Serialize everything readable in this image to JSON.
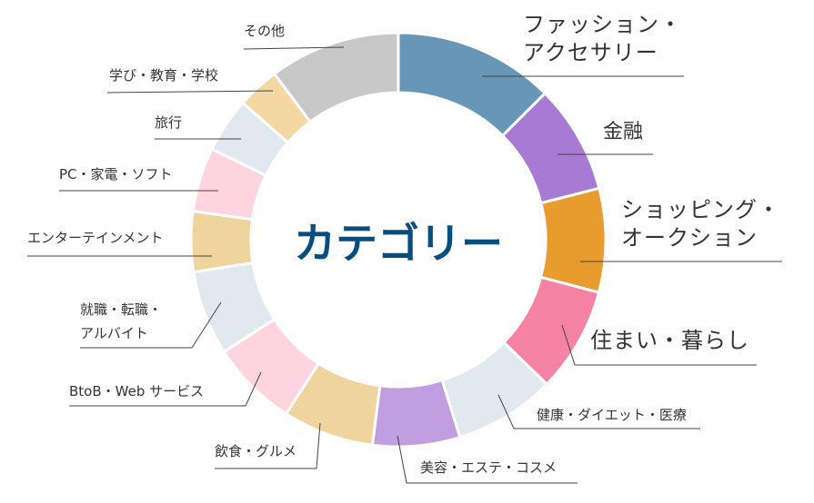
{
  "chart_data": {
    "type": "pie",
    "donut": true,
    "title": "カテゴリー",
    "unit_note": "values are estimated shares (%) read from slice angles; no values printed",
    "categories": [
      "ファッション・アクセサリー",
      "金融",
      "ショッピング・オークション",
      "住まい・暮らし",
      "健康・ダイエット・医療",
      "美容・エステ・コスメ",
      "飲食・グルメ",
      "BtoB・Web サービス",
      "就職・転職・アルバイト",
      "エンターテインメント",
      "PC・家電・ソフト",
      "旅行",
      "学び・教育・学校",
      "その他"
    ],
    "values": [
      12.5,
      8.5,
      8.1,
      8.2,
      7.9,
      6.8,
      7.1,
      6.8,
      6.6,
      4.7,
      5.0,
      4.3,
      3.3,
      10.2
    ],
    "colors": [
      "#6896b6",
      "#a77ad4",
      "#e89c2e",
      "#f683a3",
      "#e1e8ef",
      "#c19edf",
      "#efd49d",
      "#fdd4e0",
      "#e1e8ef",
      "#efd49d",
      "#fdd4e0",
      "#e1e8ef",
      "#f4d8a4",
      "#c8c8c8"
    ],
    "labels": [
      [
        "ファッション・",
        "アクセサリー"
      ],
      [
        "金融"
      ],
      [
        "ショッピング・",
        "オークション"
      ],
      [
        "住まい・暮らし"
      ],
      [
        "健康・ダイエット・医療"
      ],
      [
        "美容・エステ・コスメ"
      ],
      [
        "飲食・グルメ"
      ],
      [
        "BtoB・Web サービス"
      ],
      [
        "就職・転職・",
        "アルバイト"
      ],
      [
        "エンターテインメント"
      ],
      [
        "PC・家電・ソフト"
      ],
      [
        "旅行"
      ],
      [
        "学び・教育・学校"
      ],
      [
        "その他"
      ]
    ],
    "legend": "none (leader-line labels)"
  }
}
